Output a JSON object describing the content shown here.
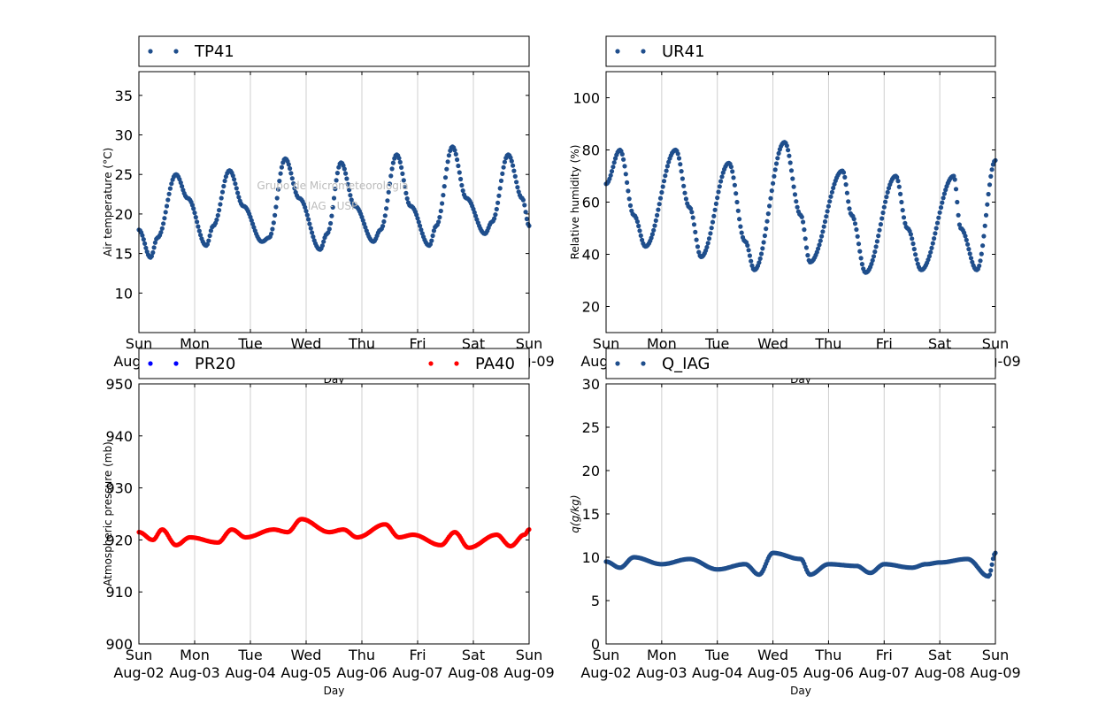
{
  "figure": {
    "watermark": [
      "Grupo de Micrometeorologia",
      "IAG - USP"
    ]
  },
  "chart_data": [
    {
      "type": "scatter",
      "panel": "top-left",
      "ylabel": "Air temperature (°C)",
      "xlabel": "Day",
      "ylim": [
        5,
        38
      ],
      "yticks": [
        10,
        15,
        20,
        25,
        30,
        35
      ],
      "xlim": [
        "2015-08-02",
        "2015-08-09"
      ],
      "xtick_labels": [
        "Sun\nAug-02",
        "Mon\nAug-03",
        "Tue\nAug-04",
        "Wed\nAug-05",
        "Thu\nAug-06",
        "Fri\nAug-07",
        "Sat\nAug-08",
        "Sun\nAug-09"
      ],
      "grid": "vertical",
      "legend_placement": "above",
      "series": [
        {
          "name": "TP41",
          "color": "#1f4e8c",
          "x": [
            "2015-08-02 00:00",
            "2015-08-02 05:00",
            "2015-08-02 08:00",
            "2015-08-02 16:00",
            "2015-08-02 21:00",
            "2015-08-03 05:00",
            "2015-08-03 08:00",
            "2015-08-03 15:00",
            "2015-08-03 21:00",
            "2015-08-04 05:00",
            "2015-08-04 08:00",
            "2015-08-04 15:00",
            "2015-08-04 21:00",
            "2015-08-05 06:00",
            "2015-08-05 09:00",
            "2015-08-05 15:00",
            "2015-08-05 21:00",
            "2015-08-06 05:00",
            "2015-08-06 08:00",
            "2015-08-06 15:00",
            "2015-08-06 21:00",
            "2015-08-07 05:00",
            "2015-08-07 08:00",
            "2015-08-07 15:00",
            "2015-08-07 21:00",
            "2015-08-08 05:00",
            "2015-08-08 08:00",
            "2015-08-08 15:00",
            "2015-08-08 21:00",
            "2015-08-09 00:00"
          ],
          "y": [
            18,
            14.5,
            17,
            25,
            22,
            16,
            18.5,
            25.5,
            21,
            16.5,
            17,
            27,
            22,
            15.5,
            17.5,
            26.5,
            21,
            16.5,
            18,
            27.5,
            21,
            16,
            18.5,
            28.5,
            22,
            17.5,
            19,
            27.5,
            22,
            18.5
          ]
        }
      ]
    },
    {
      "type": "scatter",
      "panel": "top-right",
      "ylabel": "Relative humidity (%)",
      "xlabel": "Day",
      "ylim": [
        10,
        110
      ],
      "yticks": [
        20,
        40,
        60,
        80,
        100
      ],
      "xlim": [
        "2015-08-02",
        "2015-08-09"
      ],
      "xtick_labels": [
        "Sun\nAug-02",
        "Mon\nAug-03",
        "Tue\nAug-04",
        "Wed\nAug-05",
        "Thu\nAug-06",
        "Fri\nAug-07",
        "Sat\nAug-08",
        "Sun\nAug-09"
      ],
      "grid": "vertical",
      "legend_placement": "above",
      "series": [
        {
          "name": "UR41",
          "color": "#1f4e8c",
          "x": [
            "2015-08-02 00:00",
            "2015-08-02 06:00",
            "2015-08-02 12:00",
            "2015-08-02 17:00",
            "2015-08-03 06:00",
            "2015-08-03 12:00",
            "2015-08-03 17:00",
            "2015-08-04 05:00",
            "2015-08-04 12:00",
            "2015-08-04 16:00",
            "2015-08-05 05:00",
            "2015-08-05 12:00",
            "2015-08-05 16:00",
            "2015-08-06 06:00",
            "2015-08-06 10:00",
            "2015-08-06 16:00",
            "2015-08-07 05:00",
            "2015-08-07 10:00",
            "2015-08-07 16:00",
            "2015-08-08 06:00",
            "2015-08-08 09:00",
            "2015-08-08 16:00",
            "2015-08-09 00:00"
          ],
          "y": [
            67,
            80,
            55,
            43,
            80,
            58,
            39,
            75,
            45,
            34,
            83,
            55,
            37,
            72,
            55,
            33,
            70,
            50,
            34,
            70,
            50,
            34,
            76
          ]
        }
      ]
    },
    {
      "type": "scatter",
      "panel": "bottom-left",
      "ylabel": "Atmospheric pressure (mb)",
      "xlabel": "Day",
      "ylim": [
        900,
        950
      ],
      "yticks": [
        900,
        910,
        920,
        930,
        940,
        950
      ],
      "xlim": [
        "2015-08-02",
        "2015-08-09"
      ],
      "xtick_labels": [
        "Sun\nAug-02",
        "Mon\nAug-03",
        "Tue\nAug-04",
        "Wed\nAug-05",
        "Thu\nAug-06",
        "Fri\nAug-07",
        "Sat\nAug-08",
        "Sun\nAug-09"
      ],
      "grid": "vertical",
      "legend_placement": "above",
      "series": [
        {
          "name": "PR20",
          "color": "#0000ff",
          "x": [],
          "y": []
        },
        {
          "name": "PA40",
          "color": "#ff0000",
          "x": [
            "2015-08-02 00:00",
            "2015-08-02 06:00",
            "2015-08-02 10:00",
            "2015-08-02 16:00",
            "2015-08-02 22:00",
            "2015-08-03 10:00",
            "2015-08-03 16:00",
            "2015-08-03 22:00",
            "2015-08-04 10:00",
            "2015-08-04 16:00",
            "2015-08-04 22:00",
            "2015-08-05 10:00",
            "2015-08-05 16:00",
            "2015-08-05 22:00",
            "2015-08-06 10:00",
            "2015-08-06 16:00",
            "2015-08-06 22:00",
            "2015-08-07 10:00",
            "2015-08-07 16:00",
            "2015-08-07 22:00",
            "2015-08-08 10:00",
            "2015-08-08 16:00",
            "2015-08-08 22:00",
            "2015-08-09 00:00"
          ],
          "y": [
            921.5,
            920,
            922,
            919,
            920.5,
            919.5,
            922,
            920.5,
            922,
            921.5,
            924,
            921.5,
            922,
            920.5,
            923,
            920.5,
            921,
            919,
            921.5,
            918.5,
            921,
            918.8,
            921,
            922
          ]
        }
      ]
    },
    {
      "type": "scatter",
      "panel": "bottom-right",
      "ylabel": "q(g/kg)",
      "xlabel": "Day",
      "ylim": [
        0,
        30
      ],
      "yticks": [
        0,
        5,
        10,
        15,
        20,
        25,
        30
      ],
      "xlim": [
        "2015-08-02",
        "2015-08-09"
      ],
      "xtick_labels": [
        "Sun\nAug-02",
        "Mon\nAug-03",
        "Tue\nAug-04",
        "Wed\nAug-05",
        "Thu\nAug-06",
        "Fri\nAug-07",
        "Sat\nAug-08",
        "Sun\nAug-09"
      ],
      "grid": "vertical",
      "legend_placement": "above",
      "series": [
        {
          "name": "Q_IAG",
          "color": "#1f4e8c",
          "x": [
            "2015-08-02 00:00",
            "2015-08-02 06:00",
            "2015-08-02 12:00",
            "2015-08-03 00:00",
            "2015-08-03 12:00",
            "2015-08-04 00:00",
            "2015-08-04 12:00",
            "2015-08-04 18:00",
            "2015-08-05 00:00",
            "2015-08-05 12:00",
            "2015-08-05 16:00",
            "2015-08-06 00:00",
            "2015-08-06 12:00",
            "2015-08-06 18:00",
            "2015-08-07 00:00",
            "2015-08-07 12:00",
            "2015-08-07 18:00",
            "2015-08-08 00:00",
            "2015-08-08 12:00",
            "2015-08-08 21:00",
            "2015-08-09 00:00"
          ],
          "y": [
            9.5,
            8.8,
            10,
            9.2,
            9.8,
            8.6,
            9.2,
            8,
            10.5,
            9.8,
            8,
            9.2,
            9,
            8.2,
            9.2,
            8.8,
            9.2,
            9.4,
            9.8,
            7.8,
            10.5
          ]
        }
      ]
    }
  ]
}
